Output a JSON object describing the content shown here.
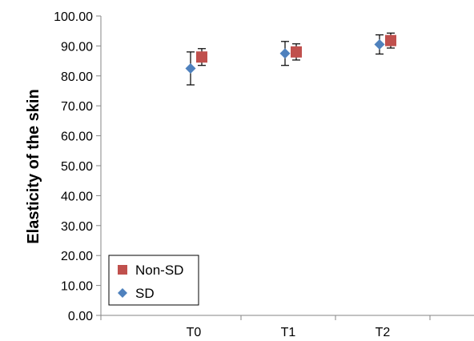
{
  "chart_data": {
    "type": "scatter",
    "title": "",
    "xlabel": "",
    "ylabel": "Elasticity of the skin",
    "categories": [
      "T0",
      "T1",
      "T2"
    ],
    "ylim": [
      0,
      100
    ],
    "y_ticks": [
      "0.00",
      "10.00",
      "20.00",
      "30.00",
      "40.00",
      "50.00",
      "60.00",
      "70.00",
      "80.00",
      "90.00",
      "100.00"
    ],
    "grid": false,
    "legend_position": "bottom-left",
    "series": [
      {
        "name": "Non-SD",
        "marker": "square",
        "color": "#c0504d",
        "values": [
          86.3,
          88.0,
          91.8
        ],
        "error": [
          2.8,
          2.7,
          2.5
        ]
      },
      {
        "name": "SD",
        "marker": "diamond",
        "color": "#4f81bd",
        "values": [
          82.5,
          87.5,
          90.5
        ],
        "error": [
          5.5,
          4.0,
          3.2
        ]
      }
    ]
  }
}
